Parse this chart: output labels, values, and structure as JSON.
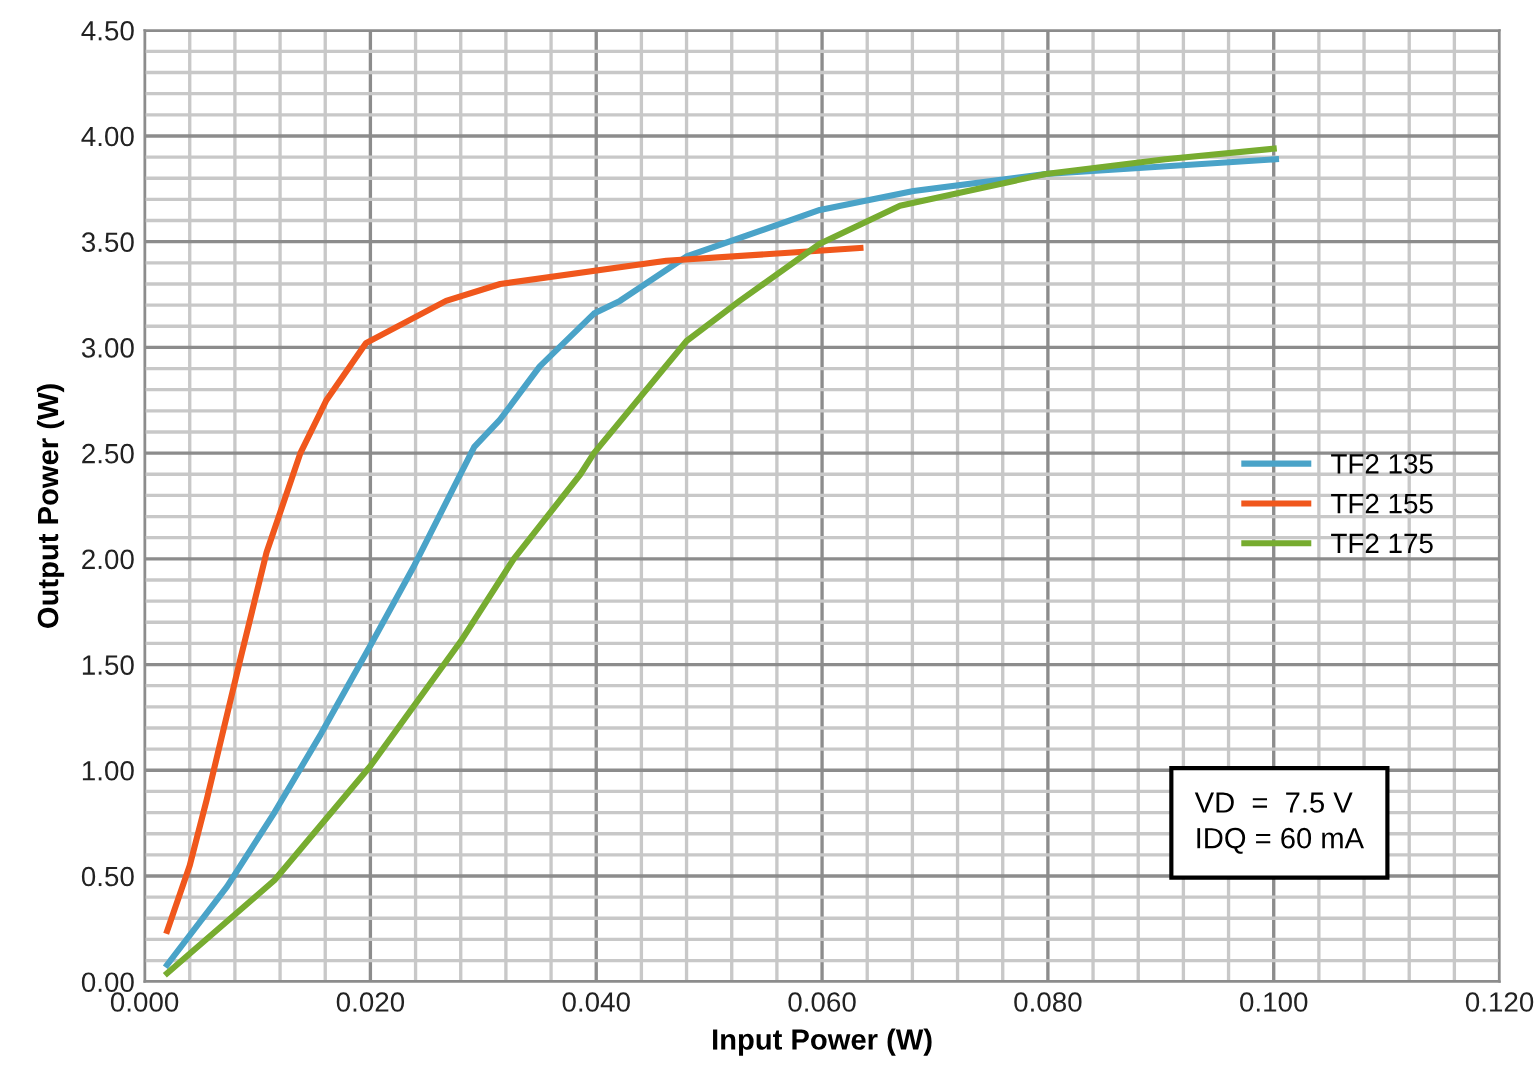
{
  "chart_data": {
    "type": "line",
    "xlabel": "Input Power (W)",
    "ylabel": "Output Power (W)",
    "annotations": [
      "VD  =  7.5 V\nIDQ = 60 mA"
    ],
    "series": [
      {
        "name": "TF2 135",
        "color": "#4aa3c8",
        "x": [
          0.002,
          0.0073,
          0.0115,
          0.0156,
          0.02,
          0.0239,
          0.0292,
          0.0315,
          0.035,
          0.0398,
          0.0421,
          0.048,
          0.0598,
          0.0681,
          0.0798,
          0.1002
        ],
        "values": [
          0.08,
          0.45,
          0.8,
          1.17,
          1.59,
          1.97,
          2.53,
          2.66,
          2.91,
          3.16,
          3.22,
          3.43,
          3.65,
          3.74,
          3.82,
          3.89
        ]
      },
      {
        "name": "TF2 155",
        "color": "#f0571c",
        "x": [
          0.002,
          0.004,
          0.0055,
          0.0085,
          0.0108,
          0.0138,
          0.0161,
          0.0196,
          0.0267,
          0.0315,
          0.0462,
          0.0634
        ],
        "values": [
          0.24,
          0.55,
          0.86,
          1.53,
          2.03,
          2.5,
          2.75,
          3.02,
          3.22,
          3.3,
          3.41,
          3.47
        ]
      },
      {
        "name": "TF2 175",
        "color": "#77ac30",
        "x": [
          0.002,
          0.0115,
          0.02,
          0.028,
          0.0327,
          0.0386,
          0.0398,
          0.048,
          0.0527,
          0.0598,
          0.0669,
          0.0798,
          0.0904,
          0.1
        ],
        "values": [
          0.04,
          0.48,
          1.02,
          1.61,
          2.0,
          2.4,
          2.5,
          3.03,
          3.22,
          3.49,
          3.67,
          3.82,
          3.89,
          3.94
        ]
      }
    ],
    "xlim": [
      0,
      0.12
    ],
    "ylim": [
      0,
      4.5
    ],
    "xticks": [
      {
        "value": 0,
        "label": "0.000"
      },
      {
        "value": 0.004,
        "label": null
      },
      {
        "value": 0.008,
        "label": null
      },
      {
        "value": 0.012,
        "label": null
      },
      {
        "value": 0.016,
        "label": null
      },
      {
        "value": 0.02,
        "label": "0.020"
      },
      {
        "value": 0.024,
        "label": null
      },
      {
        "value": 0.028,
        "label": null
      },
      {
        "value": 0.032,
        "label": null
      },
      {
        "value": 0.036,
        "label": null
      },
      {
        "value": 0.04,
        "label": "0.040"
      },
      {
        "value": 0.044,
        "label": null
      },
      {
        "value": 0.048,
        "label": null
      },
      {
        "value": 0.052,
        "label": null
      },
      {
        "value": 0.056,
        "label": null
      },
      {
        "value": 0.06,
        "label": "0.060"
      },
      {
        "value": 0.064,
        "label": null
      },
      {
        "value": 0.068,
        "label": null
      },
      {
        "value": 0.072,
        "label": null
      },
      {
        "value": 0.076,
        "label": null
      },
      {
        "value": 0.08,
        "label": "0.080"
      },
      {
        "value": 0.084,
        "label": null
      },
      {
        "value": 0.088,
        "label": null
      },
      {
        "value": 0.092,
        "label": null
      },
      {
        "value": 0.096,
        "label": null
      },
      {
        "value": 0.1,
        "label": "0.100"
      },
      {
        "value": 0.104,
        "label": null
      },
      {
        "value": 0.108,
        "label": null
      },
      {
        "value": 0.112,
        "label": null
      },
      {
        "value": 0.116,
        "label": null
      },
      {
        "value": 0.12,
        "label": "0.120"
      }
    ],
    "yticks": [
      {
        "value": 0,
        "label": "0.00"
      },
      {
        "value": 0.1,
        "label": null
      },
      {
        "value": 0.2,
        "label": null
      },
      {
        "value": 0.3,
        "label": null
      },
      {
        "value": 0.4,
        "label": null
      },
      {
        "value": 0.5,
        "label": "0.50"
      },
      {
        "value": 0.6,
        "label": null
      },
      {
        "value": 0.7,
        "label": null
      },
      {
        "value": 0.8,
        "label": null
      },
      {
        "value": 0.9,
        "label": null
      },
      {
        "value": 1.0,
        "label": "1.00"
      },
      {
        "value": 1.1,
        "label": null
      },
      {
        "value": 1.2,
        "label": null
      },
      {
        "value": 1.3,
        "label": null
      },
      {
        "value": 1.4,
        "label": null
      },
      {
        "value": 1.5,
        "label": "1.50"
      },
      {
        "value": 1.6,
        "label": null
      },
      {
        "value": 1.7,
        "label": null
      },
      {
        "value": 1.8,
        "label": null
      },
      {
        "value": 1.9,
        "label": null
      },
      {
        "value": 2.0,
        "label": "2.00"
      },
      {
        "value": 2.1,
        "label": null
      },
      {
        "value": 2.2,
        "label": null
      },
      {
        "value": 2.3,
        "label": null
      },
      {
        "value": 2.4,
        "label": null
      },
      {
        "value": 2.5,
        "label": "2.50"
      },
      {
        "value": 2.6,
        "label": null
      },
      {
        "value": 2.7,
        "label": null
      },
      {
        "value": 2.8,
        "label": null
      },
      {
        "value": 2.9,
        "label": null
      },
      {
        "value": 3.0,
        "label": "3.00"
      },
      {
        "value": 3.1,
        "label": null
      },
      {
        "value": 3.2,
        "label": null
      },
      {
        "value": 3.3,
        "label": null
      },
      {
        "value": 3.4,
        "label": null
      },
      {
        "value": 3.5,
        "label": "3.50"
      },
      {
        "value": 3.6,
        "label": null
      },
      {
        "value": 3.7,
        "label": null
      },
      {
        "value": 3.8,
        "label": null
      },
      {
        "value": 3.9,
        "label": null
      },
      {
        "value": 4.0,
        "label": "4.00"
      },
      {
        "value": 4.1,
        "label": null
      },
      {
        "value": 4.2,
        "label": null
      },
      {
        "value": 4.3,
        "label": null
      },
      {
        "value": 4.4,
        "label": null
      },
      {
        "value": 4.5,
        "label": "4.50"
      }
    ],
    "grid": true,
    "legend": "center right",
    "marker": "none",
    "line_style": "solid"
  }
}
